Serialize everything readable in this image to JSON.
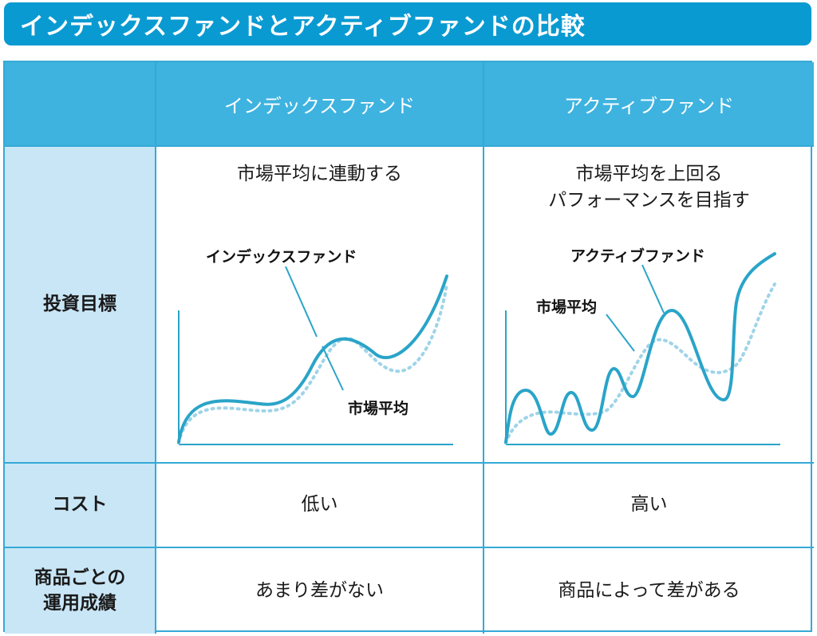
{
  "title": "インデックスファンドとアクティブファンドの比較",
  "columns": {
    "corner": "",
    "index_fund": "インデックスファンド",
    "active_fund": "アクティブファンド"
  },
  "rows": {
    "goal": {
      "label": "投資目標",
      "index_fund": {
        "caption": "市場平均に連動する",
        "fund_label": "インデックスファンド",
        "market_label": "市場平均"
      },
      "active_fund": {
        "caption_line1": "市場平均を上回る",
        "caption_line2": "パフォーマンスを目指す",
        "fund_label": "アクティブファンド",
        "market_label": "市場平均"
      }
    },
    "cost": {
      "label": "コスト",
      "index_fund": "低い",
      "active_fund": "高い"
    },
    "performance": {
      "label_line1": "商品ごとの",
      "label_line2": "運用成績",
      "index_fund": "あまり差がない",
      "active_fund": "商品によって差がある"
    }
  },
  "colors": {
    "title_bar": "#0a9ad2",
    "header": "#3eb3e0",
    "row_header": "#c9e6f6",
    "border": "#35a9d6",
    "fund_line": "#2aa4c8",
    "market_line": "#9fd4e8",
    "axis": "#2aa4c8"
  }
}
